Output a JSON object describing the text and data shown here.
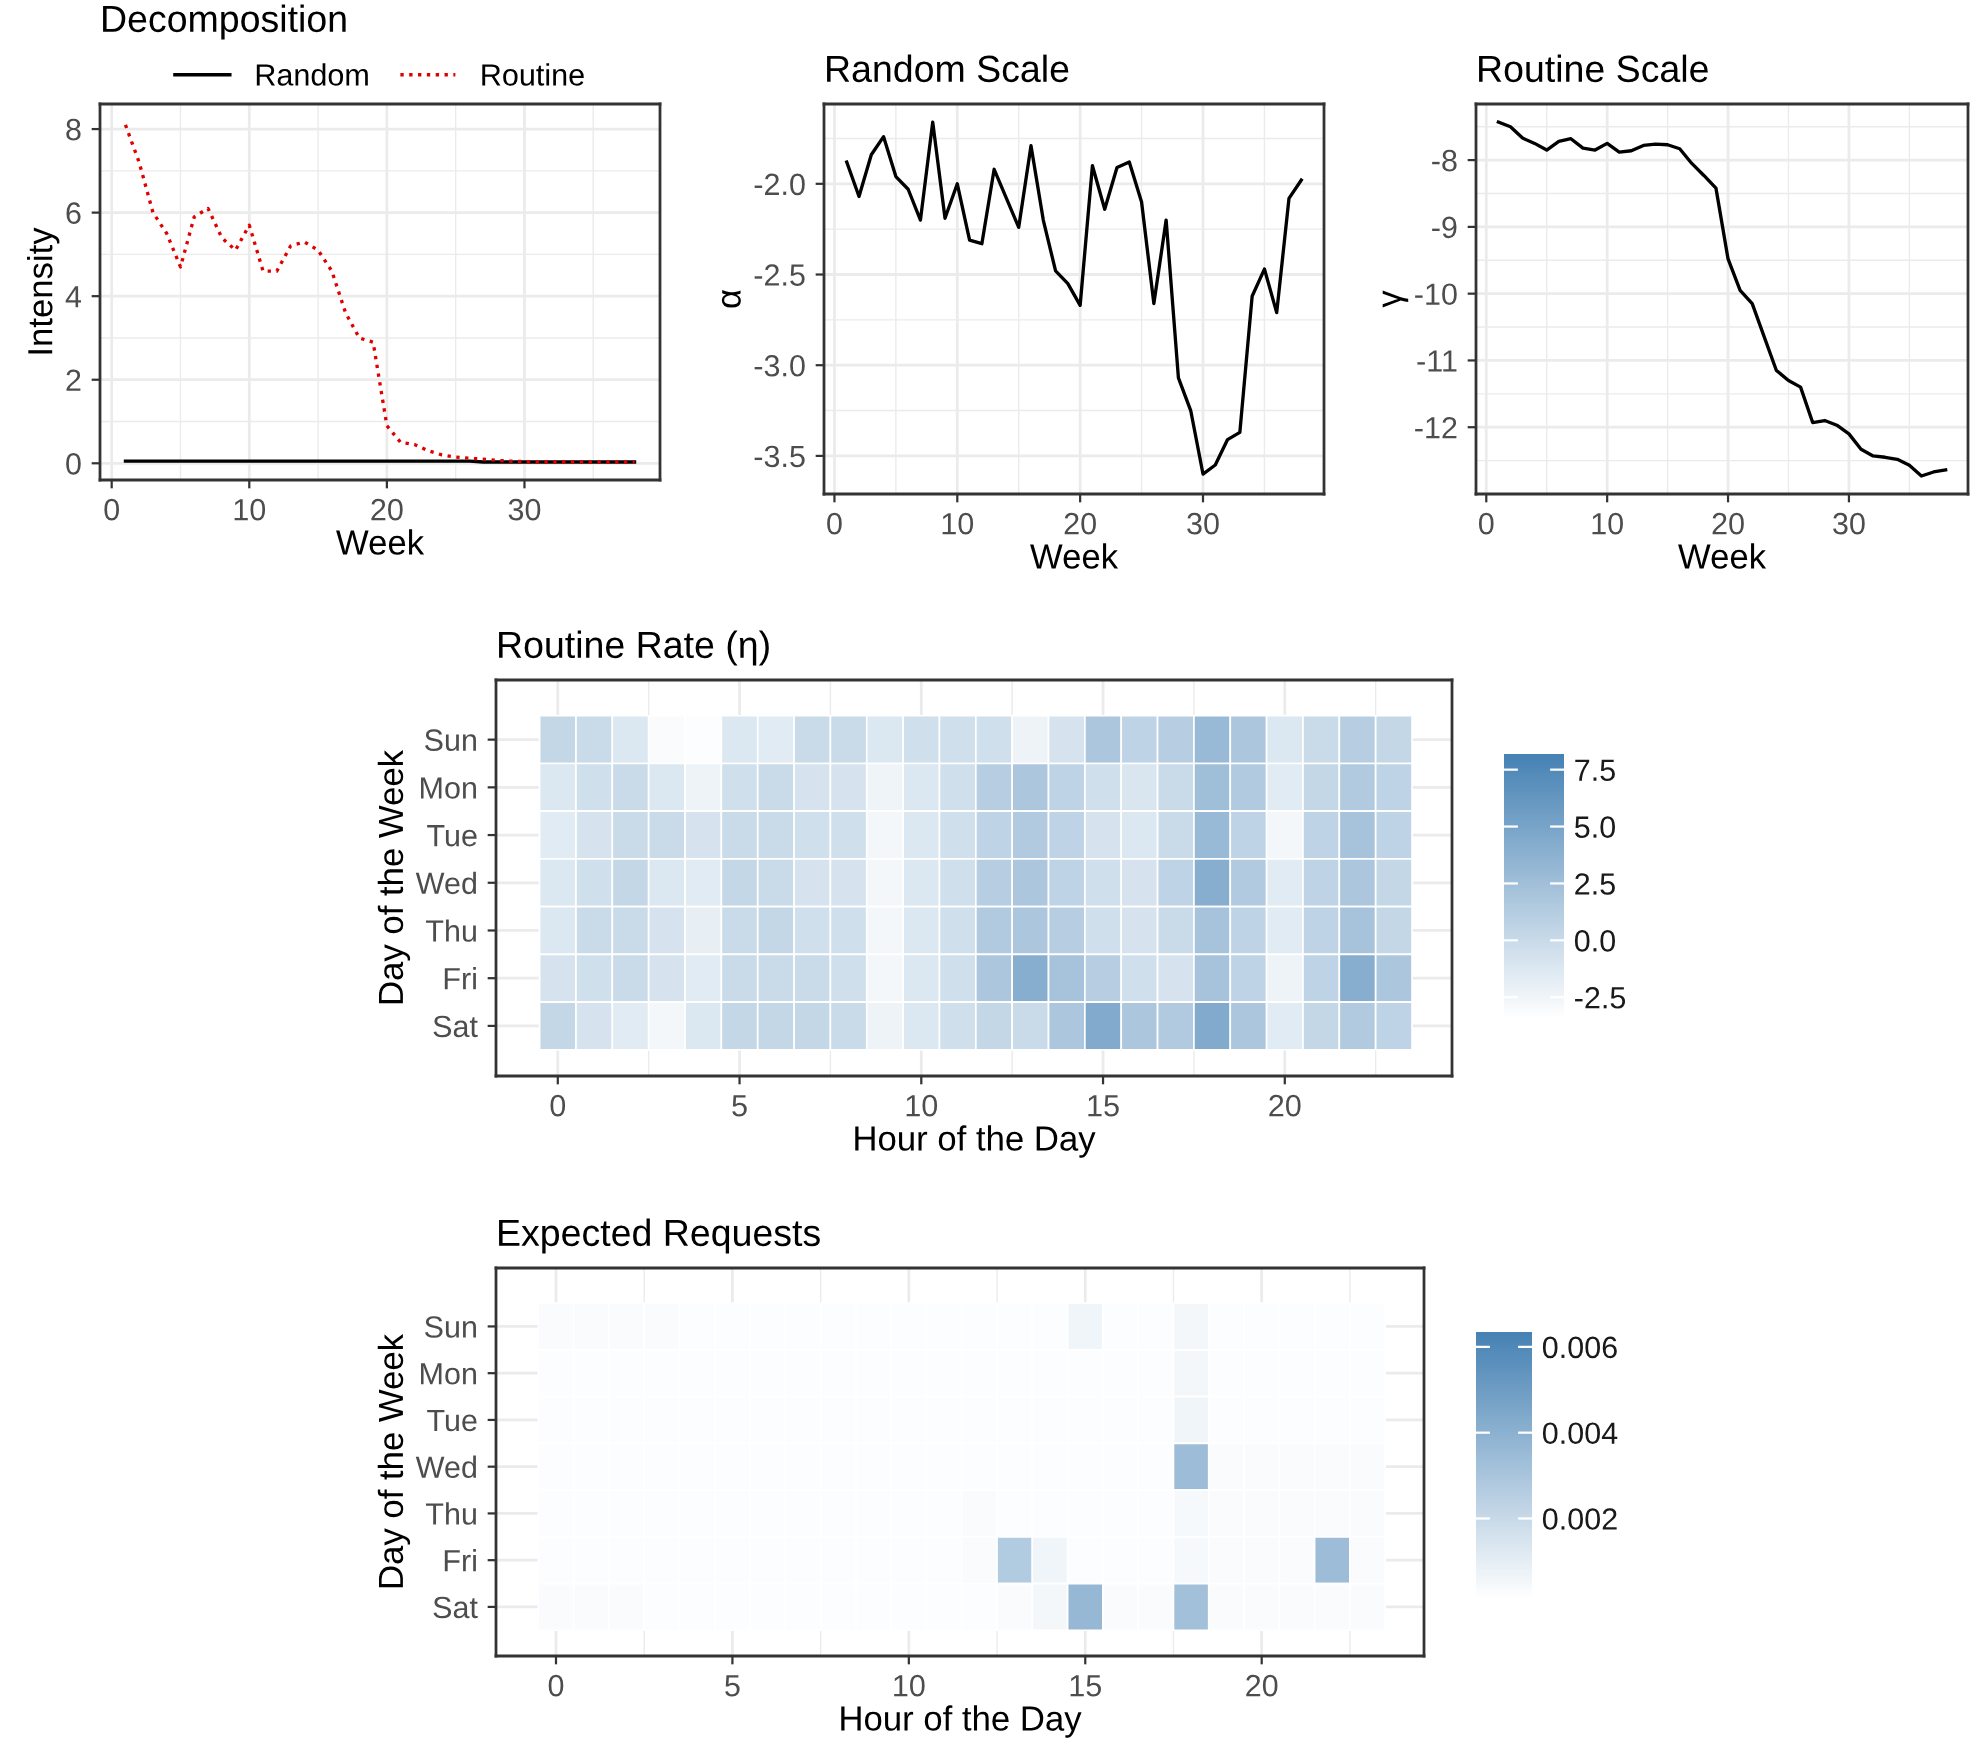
{
  "chart_data": [
    {
      "type": "line",
      "title": "Decomposition",
      "xlabel": "Week",
      "ylabel": "Intensity",
      "legend": "top",
      "grid": true,
      "x": [
        1,
        2,
        3,
        4,
        5,
        6,
        7,
        8,
        9,
        10,
        11,
        12,
        13,
        14,
        15,
        16,
        17,
        18,
        19,
        20,
        21,
        22,
        23,
        24,
        25,
        26,
        27,
        28,
        29,
        30,
        31,
        32,
        33,
        34,
        35,
        36,
        37,
        38
      ],
      "xlim": [
        -0.85,
        39.85
      ],
      "xticks": [
        0,
        10,
        20,
        30
      ],
      "ylim": [
        -0.4,
        8.6
      ],
      "yticks": [
        0,
        2,
        4,
        6,
        8
      ],
      "series": [
        {
          "name": "Random",
          "color": "#000000",
          "line_style": "solid",
          "values": [
            0.05,
            0.05,
            0.05,
            0.05,
            0.05,
            0.05,
            0.05,
            0.05,
            0.05,
            0.05,
            0.05,
            0.05,
            0.05,
            0.05,
            0.05,
            0.05,
            0.05,
            0.05,
            0.05,
            0.05,
            0.05,
            0.05,
            0.05,
            0.05,
            0.05,
            0.05,
            0.03,
            0.03,
            0.03,
            0.03,
            0.03,
            0.03,
            0.03,
            0.03,
            0.03,
            0.03,
            0.03,
            0.03
          ]
        },
        {
          "name": "Routine",
          "color": "#e00000",
          "line_style": "dotted",
          "values": [
            8.1,
            7.2,
            6.0,
            5.5,
            4.7,
            5.9,
            6.1,
            5.4,
            5.1,
            5.7,
            4.6,
            4.6,
            5.2,
            5.3,
            5.1,
            4.6,
            3.6,
            3.0,
            2.9,
            0.9,
            0.5,
            0.45,
            0.3,
            0.2,
            0.15,
            0.12,
            0.1,
            0.07,
            0.05,
            0.04,
            0.03,
            0.03,
            0.03,
            0.03,
            0.03,
            0.03,
            0.03,
            0.03
          ]
        }
      ]
    },
    {
      "type": "line",
      "title": "Random Scale",
      "xlabel": "Week",
      "ylabel": "α",
      "grid": true,
      "x": [
        1,
        2,
        3,
        4,
        5,
        6,
        7,
        8,
        9,
        10,
        11,
        12,
        13,
        14,
        15,
        16,
        17,
        18,
        19,
        20,
        21,
        22,
        23,
        24,
        25,
        26,
        27,
        28,
        29,
        30,
        31,
        32,
        33,
        34,
        35,
        36,
        37,
        38
      ],
      "xlim": [
        -0.85,
        39.85
      ],
      "xticks": [
        0,
        10,
        20,
        30
      ],
      "ylim": [
        -3.71,
        -1.56
      ],
      "yticks": [
        {
          "value": -3.5,
          "label": "-3.5"
        },
        {
          "value": -3.0,
          "label": "-3.0"
        },
        {
          "value": -2.5,
          "label": "-2.5"
        },
        {
          "value": -2.0,
          "label": "-2.0"
        }
      ],
      "series": [
        {
          "color": "#000000",
          "values": [
            -1.88,
            -2.07,
            -1.84,
            -1.74,
            -1.96,
            -2.03,
            -2.2,
            -1.66,
            -2.19,
            -2.0,
            -2.31,
            -2.33,
            -1.92,
            -2.08,
            -2.24,
            -1.79,
            -2.2,
            -2.48,
            -2.55,
            -2.67,
            -1.9,
            -2.14,
            -1.91,
            -1.88,
            -2.1,
            -2.66,
            -2.2,
            -3.07,
            -3.25,
            -3.6,
            -3.55,
            -3.41,
            -3.37,
            -2.62,
            -2.47,
            -2.71,
            -2.08,
            -1.98
          ]
        }
      ]
    },
    {
      "type": "line",
      "title": "Routine Scale",
      "xlabel": "Week",
      "ylabel": "γ",
      "grid": true,
      "x": [
        1,
        2,
        3,
        4,
        5,
        6,
        7,
        8,
        9,
        10,
        11,
        12,
        13,
        14,
        15,
        16,
        17,
        18,
        19,
        20,
        21,
        22,
        23,
        24,
        25,
        26,
        27,
        28,
        29,
        30,
        31,
        32,
        33,
        34,
        35,
        36,
        37,
        38
      ],
      "xlim": [
        -0.85,
        39.85
      ],
      "xticks": [
        0,
        10,
        20,
        30
      ],
      "ylim": [
        -13.0,
        -7.16
      ],
      "yticks": [
        {
          "value": -12,
          "label": "-12"
        },
        {
          "value": -11,
          "label": "-11"
        },
        {
          "value": -10,
          "label": "-10"
        },
        {
          "value": -9,
          "label": "-9"
        },
        {
          "value": -8,
          "label": "-8"
        }
      ],
      "series": [
        {
          "color": "#000000",
          "values": [
            -7.43,
            -7.5,
            -7.67,
            -7.75,
            -7.85,
            -7.72,
            -7.68,
            -7.82,
            -7.85,
            -7.75,
            -7.88,
            -7.86,
            -7.78,
            -7.76,
            -7.77,
            -7.83,
            -8.05,
            -8.23,
            -8.42,
            -9.48,
            -9.95,
            -10.15,
            -10.65,
            -11.15,
            -11.3,
            -11.4,
            -11.93,
            -11.9,
            -11.97,
            -12.1,
            -12.33,
            -12.43,
            -12.45,
            -12.48,
            -12.57,
            -12.73,
            -12.67,
            -12.64
          ]
        }
      ]
    },
    {
      "type": "heatmap",
      "title": "Routine Rate (η)",
      "xlabel": "Hour of the Day",
      "ylabel": "Day of the Week",
      "grid": true,
      "color": "#4682b4",
      "x": [
        0,
        1,
        2,
        3,
        4,
        5,
        6,
        7,
        8,
        9,
        10,
        11,
        12,
        13,
        14,
        15,
        16,
        17,
        18,
        19,
        20,
        21,
        22,
        23
      ],
      "xlim": [
        -1.7,
        24.6
      ],
      "xticks": [
        0,
        5,
        10,
        15,
        20
      ],
      "y_categories": [
        "Sun",
        "Mon",
        "Tue",
        "Wed",
        "Thu",
        "Fri",
        "Sat"
      ],
      "clim": [
        -3.5,
        8.1
      ],
      "cticks": [
        -2.5,
        {
          "value": 0,
          "label": "0.0"
        },
        2.5,
        {
          "value": 5,
          "label": "5.0"
        },
        7.5
      ],
      "cells": [
        [
          0.25,
          -0.1,
          -1.25,
          -3.1,
          -3.3,
          -1.25,
          -1.6,
          -0.1,
          -0.1,
          -1.25,
          -0.5,
          -0.5,
          -0.5,
          -2.4,
          -0.9,
          1.75,
          0.6,
          1.0,
          2.9,
          1.75,
          -1.25,
          -0.1,
          1.0,
          0.25
        ],
        [
          -1.25,
          -0.5,
          -0.1,
          -1.25,
          -2.4,
          -0.5,
          -0.1,
          -0.9,
          -0.9,
          -2.5,
          -1.25,
          -0.5,
          1.0,
          1.75,
          0.6,
          -0.5,
          -1.1,
          -0.1,
          2.5,
          1.4,
          -1.6,
          0.25,
          1.4,
          0.6
        ],
        [
          -1.6,
          -0.9,
          -0.1,
          -0.1,
          -0.9,
          -0.1,
          -0.1,
          -0.5,
          -0.5,
          -2.75,
          -1.25,
          -0.5,
          0.6,
          1.4,
          0.6,
          -0.9,
          -1.25,
          -0.1,
          2.9,
          0.6,
          -2.75,
          0.6,
          2.1,
          0.6
        ],
        [
          -1.25,
          -0.5,
          0.25,
          -1.25,
          -1.6,
          0.25,
          -0.1,
          -0.9,
          -0.9,
          -2.75,
          -1.25,
          -0.5,
          1.0,
          1.75,
          0.6,
          -0.5,
          -0.9,
          0.6,
          4.0,
          1.4,
          -1.6,
          0.6,
          1.75,
          0.25
        ],
        [
          -1.25,
          -0.1,
          -0.1,
          -0.9,
          -2.0,
          -0.1,
          0.25,
          -0.5,
          -0.5,
          -2.75,
          -1.25,
          -0.5,
          1.4,
          1.75,
          1.0,
          -0.5,
          -0.9,
          -0.1,
          2.1,
          0.6,
          -1.6,
          0.6,
          2.1,
          0.25
        ],
        [
          -0.9,
          -0.5,
          -0.1,
          -0.9,
          -1.6,
          -0.1,
          -0.1,
          -0.1,
          -0.5,
          -2.75,
          -1.25,
          -0.5,
          1.75,
          4.0,
          2.1,
          1.0,
          -0.5,
          -0.9,
          2.1,
          0.6,
          -2.4,
          0.6,
          4.0,
          1.75
        ],
        [
          0.25,
          -0.9,
          -1.6,
          -2.75,
          -1.25,
          0.25,
          0.25,
          0.25,
          -0.1,
          -2.4,
          -1.25,
          -0.5,
          0.25,
          -0.1,
          1.75,
          4.4,
          1.75,
          1.4,
          4.4,
          1.75,
          -1.6,
          0.25,
          1.4,
          0.6
        ]
      ]
    },
    {
      "type": "heatmap",
      "title": "Expected Requests",
      "xlabel": "Hour of the Day",
      "ylabel": "Day of the Week",
      "grid": true,
      "color": "#4682b4",
      "x": [
        0,
        1,
        2,
        3,
        4,
        5,
        6,
        7,
        8,
        9,
        10,
        11,
        12,
        13,
        14,
        15,
        16,
        17,
        18,
        19,
        20,
        21,
        22,
        23
      ],
      "xlim": [
        -1.7,
        24.6
      ],
      "xticks": [
        0,
        5,
        10,
        15,
        20
      ],
      "y_categories": [
        "Sun",
        "Mon",
        "Tue",
        "Wed",
        "Thu",
        "Fri",
        "Sat"
      ],
      "clim": [
        0.0001,
        0.0063
      ],
      "cticks": [
        0.002,
        0.004,
        0.006
      ],
      "cells": [
        [
          0.0003,
          0.0003,
          0.0003,
          0.0003,
          0.0002,
          0.0002,
          0.0002,
          0.0002,
          0.0002,
          0.0002,
          0.0002,
          0.0002,
          0.0002,
          0.0002,
          0.0002,
          0.0006,
          0.0002,
          0.0002,
          0.0005,
          0.0002,
          0.0002,
          0.0002,
          0.0002,
          0.0002
        ],
        [
          0.0002,
          0.0002,
          0.0002,
          0.0002,
          0.0002,
          0.0002,
          0.0002,
          0.0002,
          0.0002,
          0.0002,
          0.0002,
          0.0002,
          0.0002,
          0.0002,
          0.0002,
          0.0002,
          0.0002,
          0.0002,
          0.0005,
          0.0002,
          0.0002,
          0.0002,
          0.0002,
          0.0002
        ],
        [
          0.0002,
          0.0002,
          0.0002,
          0.0002,
          0.0002,
          0.0002,
          0.0002,
          0.0002,
          0.0002,
          0.0002,
          0.0002,
          0.0002,
          0.0002,
          0.0002,
          0.0002,
          0.0002,
          0.0002,
          0.0002,
          0.0006,
          0.0002,
          0.0002,
          0.0002,
          0.0002,
          0.0002
        ],
        [
          0.0002,
          0.0002,
          0.0002,
          0.0002,
          0.0002,
          0.0002,
          0.0002,
          0.0002,
          0.0002,
          0.0002,
          0.0002,
          0.0002,
          0.0002,
          0.0002,
          0.0002,
          0.0002,
          0.0002,
          0.0002,
          0.0034,
          0.0003,
          0.0003,
          0.0003,
          0.0003,
          0.0003
        ],
        [
          0.0002,
          0.0002,
          0.0002,
          0.0002,
          0.0002,
          0.0002,
          0.0002,
          0.0002,
          0.0002,
          0.0002,
          0.0002,
          0.0002,
          0.0003,
          0.0002,
          0.0002,
          0.0002,
          0.0002,
          0.0002,
          0.0004,
          0.0003,
          0.0003,
          0.0003,
          0.0003,
          0.0003
        ],
        [
          0.0002,
          0.0002,
          0.0002,
          0.0002,
          0.0002,
          0.0002,
          0.0002,
          0.0002,
          0.0002,
          0.0002,
          0.0002,
          0.0002,
          0.0003,
          0.0027,
          0.0006,
          0.0002,
          0.0002,
          0.0002,
          0.0004,
          0.0003,
          0.0003,
          0.0003,
          0.0034,
          0.0003
        ],
        [
          0.0003,
          0.0003,
          0.0003,
          0.0002,
          0.0002,
          0.0002,
          0.0002,
          0.0002,
          0.0002,
          0.0002,
          0.0002,
          0.0002,
          0.0002,
          0.0003,
          0.0005,
          0.0036,
          0.0003,
          0.0003,
          0.0032,
          0.0003,
          0.0003,
          0.0003,
          0.0003,
          0.0003
        ]
      ]
    }
  ]
}
